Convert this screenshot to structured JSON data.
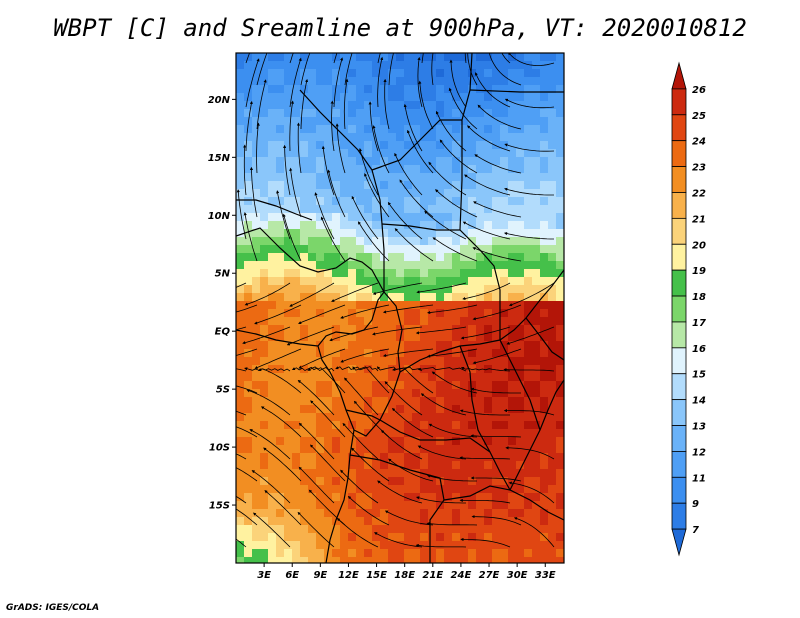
{
  "title": "WBPT [C] and Sreamline at 900hPa, VT: 2020010812",
  "credit": "GrADS: IGES/COLA",
  "map": {
    "lon_range": [
      0,
      35
    ],
    "lat_range": [
      -20,
      24
    ],
    "lat_ticks": [
      {
        "label": "20N",
        "lat": 20
      },
      {
        "label": "15N",
        "lat": 15
      },
      {
        "label": "10N",
        "lat": 10
      },
      {
        "label": "5N",
        "lat": 5
      },
      {
        "label": "EQ",
        "lat": 0
      },
      {
        "label": "5S",
        "lat": -5
      },
      {
        "label": "10S",
        "lat": -10
      },
      {
        "label": "15S",
        "lat": -15
      }
    ],
    "lon_ticks": [
      {
        "label": "3E",
        "lon": 3
      },
      {
        "label": "6E",
        "lon": 6
      },
      {
        "label": "9E",
        "lon": 9
      },
      {
        "label": "12E",
        "lon": 12
      },
      {
        "label": "15E",
        "lon": 15
      },
      {
        "label": "18E",
        "lon": 18
      },
      {
        "label": "21E",
        "lon": 21
      },
      {
        "label": "24E",
        "lon": 24
      },
      {
        "label": "27E",
        "lon": 27
      },
      {
        "label": "30E",
        "lon": 30
      },
      {
        "label": "33E",
        "lon": 33
      }
    ]
  },
  "colorbar": {
    "levels": [
      "7",
      "9",
      "11",
      "12",
      "13",
      "14",
      "15",
      "16",
      "17",
      "18",
      "19",
      "20",
      "21",
      "22",
      "23",
      "24",
      "25",
      "26"
    ],
    "colors": [
      "#1e6ad8",
      "#2d7de6",
      "#3c8ff0",
      "#4f9ff5",
      "#6ab2f8",
      "#8ac6fa",
      "#b2dcfc",
      "#e0f3fd",
      "#b7e8a7",
      "#7bd66a",
      "#45c04a",
      "#fff2a0",
      "#fbd37a",
      "#f8b14b",
      "#f28e22",
      "#ec6a12",
      "#e04612",
      "#cc2a10",
      "#b31508"
    ]
  },
  "field_palette": [
    "#1e6ad8",
    "#2d7de6",
    "#3c8ff0",
    "#4f9ff5",
    "#6ab2f8",
    "#8ac6fa",
    "#b2dcfc",
    "#e0f3fd",
    "#b7e8a7",
    "#7bd66a",
    "#45c04a",
    "#fff2a0",
    "#fbd37a",
    "#f8b14b",
    "#f28e22",
    "#ec6a12",
    "#e04612",
    "#cc2a10",
    "#b31508"
  ]
}
